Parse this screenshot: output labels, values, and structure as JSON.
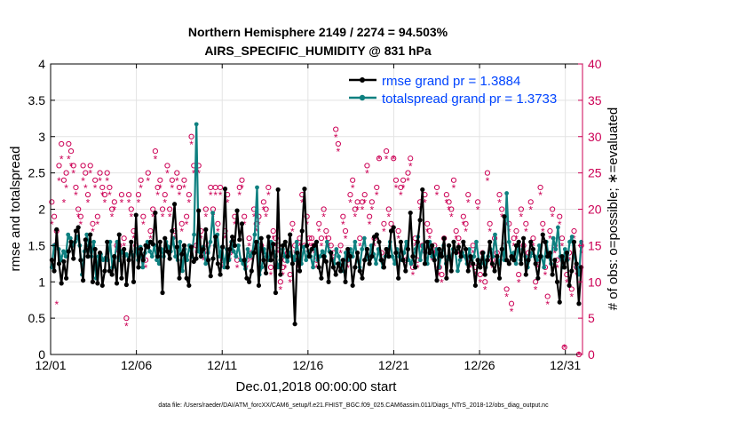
{
  "chart_data": {
    "type": "line",
    "title_line1": "Northern Hemisphere 2149 / 2274 = 94.503%",
    "title_line2": "AIRS_SPECIFIC_HUMIDITY @ 831 hPa",
    "xlabel": "Dec.01,2018 00:00:00 start",
    "ylabel": "rmse and totalspread",
    "y2label": "# of obs: o=possible; ∗=evaluated",
    "footnote": "data file: /Users/raeder/DAI/ATM_forcXX/CAM6_setup/f.e21.FHIST_BGC.f09_025.CAM6assim.011/Diags_NTrS_2018-12/obs_diag_output.nc",
    "x_ticks": [
      "12/01",
      "12/06",
      "12/11",
      "12/16",
      "12/21",
      "12/26",
      "12/31"
    ],
    "x_tick_days": [
      0,
      5,
      10,
      15,
      20,
      25,
      30
    ],
    "xlim": [
      0,
      31
    ],
    "ylim": [
      0,
      4
    ],
    "y_ticks": [
      "0",
      "0.5",
      "1",
      "1.5",
      "2",
      "2.5",
      "3",
      "3.5",
      "4"
    ],
    "y2lim": [
      0,
      40
    ],
    "y2_ticks": [
      "0",
      "5",
      "10",
      "15",
      "20",
      "25",
      "30",
      "35",
      "40"
    ],
    "grid": true,
    "legend_position": "top-right",
    "colors": {
      "rmse": "#000000",
      "spread": "#0e8080",
      "obs": "#cc0055",
      "legend_text": "#0044ff"
    },
    "series": [
      {
        "name": "rmse grand pr = 1.3884",
        "key": "rmse",
        "values": [
          1.3,
          1.15,
          1.72,
          1.25,
          0.98,
          1.28,
          1.05,
          1.42,
          1.55,
          1.32,
          1.7,
          1.75,
          1.3,
          1.02,
          1.58,
          1.35,
          1.65,
          1.0,
          1.45,
          0.98,
          1.4,
          0.95,
          1.15,
          1.55,
          1.15,
          1.1,
          1.35,
          0.98,
          1.65,
          1.05,
          1.45,
          0.96,
          1.3,
          1.55,
          1.0,
          1.92,
          1.2,
          1.45,
          1.3,
          1.5,
          1.48,
          1.55,
          1.52,
          1.95,
          1.35,
          1.55,
          0.85,
          1.6,
          1.42,
          1.32,
          1.7,
          2.07,
          1.48,
          1.05,
          1.38,
          1.5,
          1.05,
          0.95,
          1.48,
          1.28,
          1.32,
          1.98,
          1.35,
          1.45,
          1.72,
          1.3,
          1.08,
          1.32,
          1.62,
          1.25,
          1.1,
          1.48,
          2.28,
          1.2,
          1.45,
          1.62,
          1.5,
          1.98,
          1.58,
          1.8,
          1.3,
          1.05,
          1.0,
          1.15,
          1.4,
          1.55,
          0.95,
          1.6,
          1.3,
          1.12,
          1.62,
          1.3,
          1.52,
          0.85,
          2.27,
          1.1,
          1.5,
          1.55,
          1.35,
          1.65,
          1.25,
          0.42,
          1.4,
          1.15,
          1.7,
          2.28,
          1.5,
          1.35,
          1.45,
          1.5,
          1.55,
          1.2,
          1.05,
          1.35,
          1.28,
          1.0,
          1.4,
          1.2,
          1.1,
          1.25,
          1.15,
          1.3,
          1.0,
          1.45,
          1.35,
          0.95,
          1.2,
          1.4,
          1.15,
          1.05,
          1.3,
          1.45,
          1.25,
          1.35,
          1.62,
          1.65,
          1.55,
          1.3,
          1.2,
          1.45,
          1.35,
          1.7,
          1.75,
          1.4,
          1.05,
          1.55,
          1.3,
          1.15,
          1.45,
          1.95,
          1.35,
          1.2,
          1.55,
          1.85,
          2.27,
          1.25,
          1.55,
          1.4,
          1.5,
          1.3,
          1.02,
          1.45,
          1.35,
          1.6,
          1.05,
          1.5,
          1.15,
          1.55,
          1.4,
          1.48,
          1.35,
          1.55,
          1.45,
          1.15,
          1.35,
          1.25,
          0.95,
          1.3,
          1.2,
          1.4,
          1.1,
          1.3,
          1.55,
          1.25,
          1.15,
          1.35,
          1.05,
          1.45,
          1.9,
          1.3,
          1.25,
          1.35,
          1.3,
          1.5,
          1.55,
          1.25,
          1.6,
          1.1,
          1.3,
          1.55,
          1.45,
          1.25,
          1.05,
          1.35,
          1.65,
          1.55,
          1.35,
          1.4,
          1.1,
          1.3,
          1.0,
          0.72,
          1.35,
          1.2,
          1.4,
          0.95,
          1.15,
          1.55,
          1.25,
          0.7,
          1.2
        ]
      },
      {
        "name": "totalspread grand pr = 1.3733",
        "key": "spread",
        "values": [
          1.2,
          1.5,
          1.52,
          1.45,
          1.3,
          1.42,
          1.35,
          1.65,
          1.6,
          1.5,
          1.55,
          1.62,
          1.5,
          1.1,
          1.42,
          1.65,
          1.5,
          1.35,
          1.55,
          1.05,
          1.35,
          1.38,
          1.3,
          1.33,
          1.3,
          1.55,
          1.2,
          1.33,
          1.55,
          1.3,
          1.42,
          1.35,
          1.38,
          1.3,
          1.42,
          1.35,
          1.45,
          1.3,
          1.48,
          1.2,
          1.4,
          1.55,
          1.42,
          1.35,
          1.5,
          1.3,
          1.25,
          1.45,
          1.35,
          1.55,
          1.48,
          1.42,
          1.6,
          1.35,
          1.3,
          1.55,
          1.15,
          1.45,
          1.3,
          1.5,
          1.35,
          1.65,
          3.17,
          1.42,
          1.35,
          1.48,
          1.25,
          1.4,
          1.55,
          1.95,
          1.5,
          1.65,
          1.35,
          1.48,
          1.2,
          1.45,
          1.3,
          1.55,
          1.42,
          1.35,
          1.5,
          1.3,
          1.25,
          1.18,
          1.45,
          1.35,
          1.4,
          1.65,
          2.3,
          1.1,
          1.2,
          1.45,
          1.35,
          1.3,
          1.55,
          1.42,
          1.35,
          1.2,
          1.3,
          1.45,
          1.35,
          1.28,
          1.4,
          1.35,
          1.3,
          1.55,
          1.35,
          1.25,
          1.48,
          1.3,
          1.42,
          1.35,
          1.2,
          1.45,
          1.3,
          1.35,
          1.42,
          1.35,
          1.55,
          1.42,
          1.3,
          1.25,
          1.45,
          1.35,
          1.2,
          1.15,
          1.4,
          1.3,
          1.45,
          1.35,
          1.55,
          1.3,
          1.2,
          1.45,
          1.6,
          1.35,
          1.3,
          1.5,
          1.38,
          1.25,
          1.45,
          1.3,
          1.2,
          1.35,
          1.42,
          1.55,
          1.35,
          1.25,
          1.45,
          1.35,
          1.3,
          1.4,
          1.55,
          1.3,
          1.25,
          1.35,
          1.45,
          1.62,
          1.3,
          1.5,
          1.4,
          1.25,
          1.55,
          1.35,
          1.3,
          1.45,
          1.2,
          1.38,
          1.5,
          1.25,
          1.35,
          1.3,
          1.45,
          1.42,
          1.15,
          1.3,
          1.4,
          1.35,
          1.25,
          1.45,
          1.3,
          1.35,
          1.55,
          1.3,
          1.25,
          1.4,
          1.2,
          1.35,
          1.45,
          1.35,
          1.65,
          1.35,
          1.25,
          1.45,
          1.3,
          2.22,
          1.55,
          1.35,
          1.4,
          1.25,
          1.5,
          1.3,
          1.45,
          1.35,
          1.2,
          1.35,
          1.4,
          1.35,
          1.3,
          1.5,
          1.35,
          1.2,
          1.55,
          1.35,
          1.25,
          1.6,
          1.45,
          1.75,
          1.35,
          1.2,
          1.45,
          1.3,
          1.55,
          1.62,
          1.35,
          1.2,
          1.1,
          1.55
        ]
      },
      {
        "name": "obs possible",
        "key": "possible",
        "values": [
          21,
          19,
          17,
          26,
          29,
          24,
          25,
          29,
          28,
          26,
          23,
          20,
          19,
          26,
          25,
          22,
          26,
          18,
          24,
          19,
          25,
          23,
          22,
          25,
          23,
          20,
          21,
          15,
          15,
          22,
          16,
          5,
          22,
          20,
          17,
          15,
          22,
          24,
          19,
          13,
          25,
          17,
          20,
          28,
          23,
          24,
          20,
          22,
          26,
          20,
          24,
          17,
          25,
          23,
          18,
          24,
          19,
          22,
          30,
          26,
          15,
          26,
          17,
          14,
          20,
          15,
          23,
          20,
          23,
          18,
          23,
          13,
          17,
          22,
          14,
          15,
          19,
          13,
          23,
          24,
          19,
          13,
          16,
          14,
          20,
          18,
          19,
          15,
          21,
          20,
          23,
          12,
          17,
          16,
          15,
          10,
          12,
          13,
          14,
          11,
          18,
          15,
          13,
          16,
          22,
          15,
          19,
          16,
          16,
          15,
          13,
          18,
          16,
          20,
          17,
          16,
          15,
          14,
          31,
          29,
          15,
          19,
          17,
          13,
          22,
          24,
          20,
          21,
          16,
          21,
          22,
          26,
          19,
          21,
          16,
          23,
          27,
          14,
          18,
          28,
          20,
          18,
          27,
          24,
          17,
          23,
          24,
          13,
          25,
          27,
          12,
          16,
          13,
          21,
          15,
          22,
          18,
          17,
          14,
          15,
          23,
          12,
          11,
          16,
          22,
          21,
          20,
          24,
          17,
          16,
          14,
          19,
          18,
          22,
          13,
          15,
          12,
          21,
          11,
          14,
          10,
          25,
          18,
          13,
          16,
          14,
          22,
          20,
          15,
          9,
          18,
          7,
          16,
          17,
          11,
          20,
          15,
          18,
          14,
          21,
          16,
          10,
          13,
          23,
          18,
          12,
          8,
          17,
          20,
          15,
          13,
          19,
          16,
          1,
          11,
          14,
          9,
          17,
          12,
          0,
          15
        ]
      },
      {
        "name": "obs evaluated",
        "key": "evaluated",
        "values": [
          18,
          15,
          7,
          24,
          27,
          21,
          23,
          27,
          26,
          25,
          22,
          19,
          18,
          24,
          23,
          21,
          25,
          17,
          23,
          18,
          24,
          22,
          21,
          24,
          22,
          19,
          20,
          14,
          14,
          21,
          15,
          4,
          21,
          19,
          16,
          14,
          21,
          23,
          18,
          12,
          24,
          16,
          19,
          27,
          22,
          23,
          19,
          21,
          25,
          19,
          23,
          16,
          24,
          22,
          17,
          23,
          18,
          21,
          29,
          25,
          14,
          25,
          16,
          13,
          19,
          14,
          22,
          19,
          22,
          17,
          22,
          12,
          16,
          21,
          13,
          14,
          18,
          12,
          22,
          23,
          18,
          12,
          15,
          13,
          19,
          17,
          18,
          14,
          20,
          19,
          22,
          11,
          16,
          15,
          14,
          9,
          11,
          12,
          13,
          10,
          17,
          14,
          12,
          15,
          21,
          14,
          18,
          15,
          15,
          14,
          12,
          17,
          15,
          19,
          16,
          15,
          14,
          13,
          30,
          28,
          14,
          18,
          16,
          12,
          21,
          23,
          19,
          20,
          15,
          20,
          21,
          25,
          18,
          20,
          15,
          22,
          27,
          13,
          17,
          27,
          19,
          17,
          27,
          23,
          16,
          22,
          23,
          12,
          24,
          26,
          11,
          15,
          12,
          20,
          14,
          21,
          17,
          16,
          13,
          14,
          22,
          11,
          10,
          15,
          21,
          20,
          19,
          23,
          16,
          15,
          13,
          18,
          17,
          21,
          12,
          14,
          11,
          20,
          10,
          13,
          9,
          24,
          17,
          12,
          15,
          13,
          21,
          19,
          14,
          8,
          17,
          6,
          15,
          16,
          10,
          19,
          14,
          17,
          13,
          20,
          15,
          9,
          12,
          22,
          17,
          11,
          7,
          16,
          19,
          14,
          12,
          18,
          15,
          1,
          10,
          13,
          8,
          16,
          11,
          0,
          14
        ]
      }
    ]
  }
}
